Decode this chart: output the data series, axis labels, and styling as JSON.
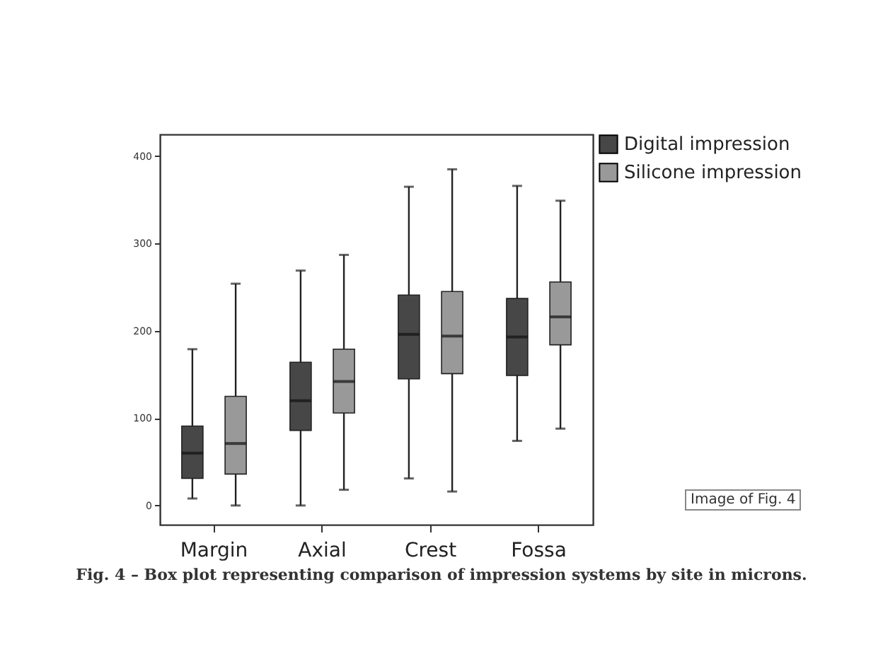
{
  "chart_data": {
    "type": "box",
    "categories": [
      "Margin",
      "Axial",
      "Crest",
      "Fossa"
    ],
    "series": [
      {
        "name": "Digital impression",
        "color": "#474747",
        "boxes": [
          {
            "low": 8,
            "q1": 31,
            "median": 60,
            "q3": 91,
            "high": 179
          },
          {
            "low": 0,
            "q1": 86,
            "median": 120,
            "q3": 164,
            "high": 269
          },
          {
            "low": 31,
            "q1": 145,
            "median": 196,
            "q3": 241,
            "high": 365
          },
          {
            "low": 74,
            "q1": 149,
            "median": 193,
            "q3": 237,
            "high": 366
          }
        ]
      },
      {
        "name": "Silicone impression",
        "color": "#999999",
        "boxes": [
          {
            "low": 0,
            "q1": 36,
            "median": 71,
            "q3": 125,
            "high": 254
          },
          {
            "low": 18,
            "q1": 106,
            "median": 142,
            "q3": 179,
            "high": 287
          },
          {
            "low": 16,
            "q1": 151,
            "median": 194,
            "q3": 245,
            "high": 385
          },
          {
            "low": 88,
            "q1": 184,
            "median": 216,
            "q3": 256,
            "high": 349
          }
        ]
      }
    ],
    "ylim": [
      -22,
      425
    ],
    "yticks": [
      0,
      100,
      200,
      300,
      400
    ],
    "grid": false,
    "legend": "top right",
    "annotations": [
      "Fig. 4 – Box plot representing comparison of impression systems by site in microns.",
      "Image of Fig. 4"
    ]
  }
}
